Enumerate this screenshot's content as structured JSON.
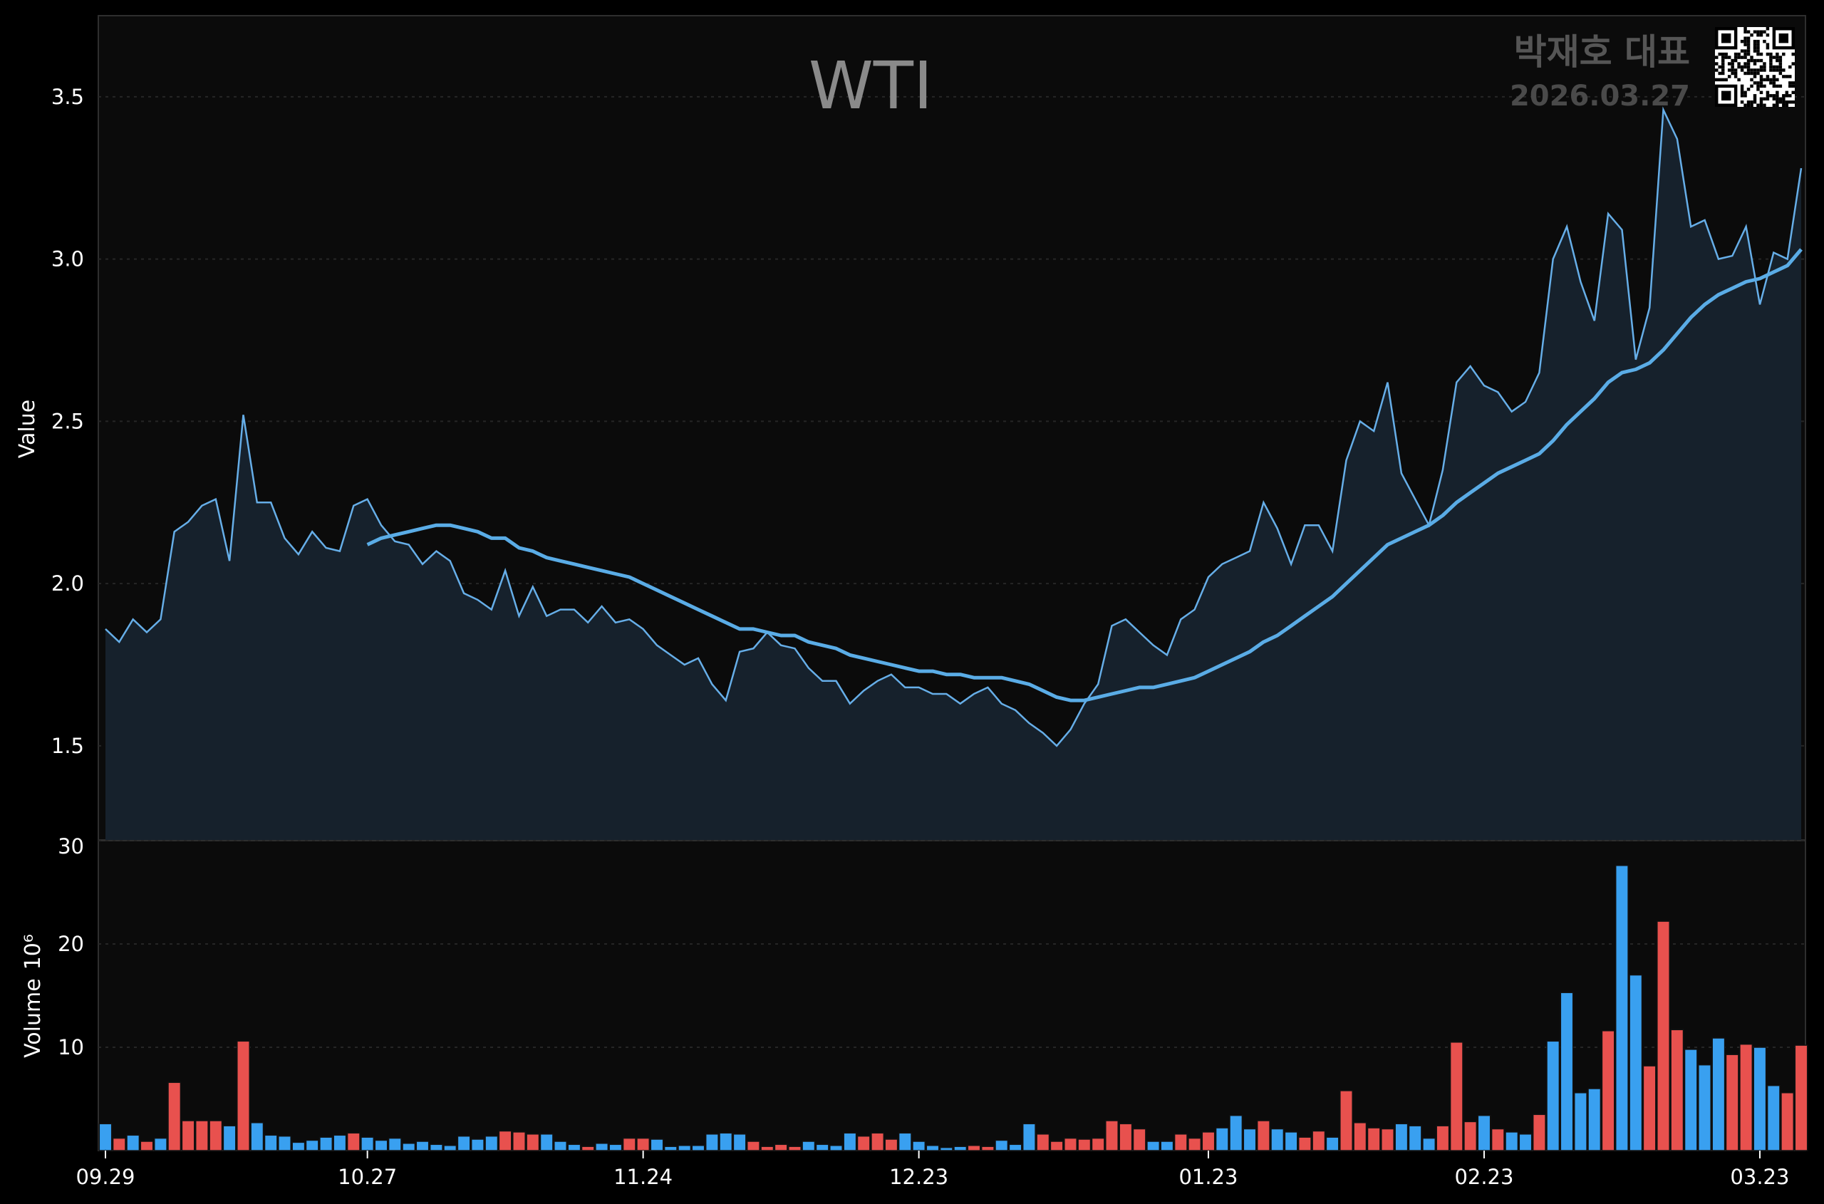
{
  "header": {
    "title": "WTI",
    "author": "박재호 대표",
    "date": "2026.03.27"
  },
  "colors": {
    "background": "#0b0b0b",
    "price_line": "#66aee8",
    "moving_average": "#5aace6",
    "area_fill": "#16212c",
    "volume_up": "#e8514e",
    "volume_down": "#39a0f0",
    "grid": "#2a2a2a"
  },
  "chart_data": [
    {
      "type": "line",
      "panel": "price",
      "title": "WTI",
      "ylabel": "Value",
      "ylim": [
        1.21,
        3.75
      ],
      "yticks": [
        "1.5",
        "2.0",
        "2.5",
        "3.0",
        "3.5"
      ],
      "grid": true,
      "series": [
        {
          "values": [
            1.86,
            1.82,
            1.89,
            1.85,
            1.89,
            2.16,
            2.19,
            2.24,
            2.26,
            2.07,
            2.52,
            2.25,
            2.25,
            2.14,
            2.09,
            2.16,
            2.11,
            2.1,
            2.24,
            2.26,
            2.18,
            2.13,
            2.12,
            2.06,
            2.1,
            2.07,
            1.97,
            1.95,
            1.92,
            2.04,
            1.9,
            1.99,
            1.9,
            1.92,
            1.92,
            1.88,
            1.93,
            1.88,
            1.89,
            1.86,
            1.81,
            1.78,
            1.75,
            1.77,
            1.69,
            1.64,
            1.79,
            1.8,
            1.85,
            1.81,
            1.8,
            1.74,
            1.7,
            1.7,
            1.63,
            1.67,
            1.7,
            1.72,
            1.68,
            1.68,
            1.66,
            1.66,
            1.63,
            1.66,
            1.68,
            1.63,
            1.61,
            1.57,
            1.54,
            1.5,
            1.55,
            1.63,
            1.69,
            1.87,
            1.89,
            1.85,
            1.81,
            1.78,
            1.89,
            1.92,
            2.02,
            2.06,
            2.08,
            2.1,
            2.25,
            2.17,
            2.06,
            2.18,
            2.18,
            2.1,
            2.38,
            2.5,
            2.47,
            2.62,
            2.34,
            2.26,
            2.18,
            2.35,
            2.62,
            2.67,
            2.61,
            2.59,
            2.53,
            2.56,
            2.65,
            3.0,
            3.1,
            2.93,
            2.81,
            3.14,
            3.09,
            2.69,
            2.85,
            3.46,
            3.37,
            3.1,
            3.12,
            3.0,
            3.01,
            3.1,
            2.86,
            3.02,
            3.0,
            3.28
          ]
        },
        {
          "values": [
            null,
            null,
            null,
            null,
            null,
            null,
            null,
            null,
            null,
            null,
            null,
            null,
            null,
            null,
            null,
            null,
            null,
            null,
            null,
            2.12,
            2.14,
            2.15,
            2.16,
            2.17,
            2.18,
            2.18,
            2.17,
            2.16,
            2.14,
            2.14,
            2.11,
            2.1,
            2.08,
            2.07,
            2.06,
            2.05,
            2.04,
            2.03,
            2.02,
            2.0,
            1.98,
            1.96,
            1.94,
            1.92,
            1.9,
            1.88,
            1.86,
            1.86,
            1.85,
            1.84,
            1.84,
            1.82,
            1.81,
            1.8,
            1.78,
            1.77,
            1.76,
            1.75,
            1.74,
            1.73,
            1.73,
            1.72,
            1.72,
            1.71,
            1.71,
            1.71,
            1.7,
            1.69,
            1.67,
            1.65,
            1.64,
            1.64,
            1.65,
            1.66,
            1.67,
            1.68,
            1.68,
            1.69,
            1.7,
            1.71,
            1.73,
            1.75,
            1.77,
            1.79,
            1.82,
            1.84,
            1.87,
            1.9,
            1.93,
            1.96,
            2.0,
            2.04,
            2.08,
            2.12,
            2.14,
            2.16,
            2.18,
            2.21,
            2.25,
            2.28,
            2.31,
            2.34,
            2.36,
            2.38,
            2.4,
            2.44,
            2.49,
            2.53,
            2.57,
            2.62,
            2.65,
            2.66,
            2.68,
            2.72,
            2.77,
            2.82,
            2.86,
            2.89,
            2.91,
            2.93,
            2.94,
            2.96,
            2.98,
            3.03
          ]
        }
      ]
    },
    {
      "type": "bar",
      "panel": "volume",
      "ylabel": "Volume",
      "ylabel_exponent": "10⁶",
      "ylim": [
        0,
        30
      ],
      "yticks": [
        "10",
        "20",
        "30"
      ],
      "grid": true,
      "values": [
        2.6,
        1.2,
        1.5,
        0.9,
        1.2,
        6.6,
        2.9,
        2.9,
        2.9,
        2.4,
        10.6,
        2.7,
        1.5,
        1.4,
        0.8,
        1.0,
        1.3,
        1.5,
        1.7,
        1.3,
        1.0,
        1.2,
        0.7,
        0.9,
        0.6,
        0.5,
        1.4,
        1.1,
        1.4,
        1.9,
        1.8,
        1.6,
        1.6,
        0.9,
        0.6,
        0.4,
        0.7,
        0.6,
        1.2,
        1.2,
        1.1,
        0.4,
        0.5,
        0.5,
        1.6,
        1.7,
        1.6,
        0.9,
        0.4,
        0.6,
        0.4,
        0.9,
        0.6,
        0.5,
        1.7,
        1.4,
        1.7,
        1.1,
        1.7,
        0.9,
        0.5,
        0.3,
        0.4,
        0.5,
        0.4,
        1.0,
        0.6,
        2.6,
        1.6,
        0.9,
        1.2,
        1.1,
        1.2,
        2.9,
        2.6,
        2.1,
        0.9,
        0.9,
        1.6,
        1.2,
        1.8,
        2.2,
        3.4,
        2.1,
        2.9,
        2.1,
        1.8,
        1.3,
        1.9,
        1.3,
        5.8,
        2.7,
        2.2,
        2.1,
        2.6,
        2.4,
        1.2,
        2.4,
        10.5,
        2.8,
        3.4,
        2.1,
        1.8,
        1.6,
        3.5,
        10.6,
        15.3,
        5.6,
        6.0,
        11.6,
        27.6,
        17.0,
        8.2,
        22.2,
        11.7,
        9.8,
        8.3,
        10.9,
        9.3,
        10.3,
        10.0,
        6.3,
        5.6,
        10.2
      ],
      "up": [
        0,
        1,
        0,
        1,
        0,
        1,
        1,
        1,
        1,
        0,
        1,
        0,
        0,
        0,
        0,
        0,
        0,
        0,
        1,
        0,
        0,
        0,
        0,
        0,
        0,
        0,
        0,
        0,
        0,
        1,
        1,
        1,
        0,
        0,
        0,
        1,
        0,
        0,
        1,
        1,
        0,
        0,
        0,
        0,
        0,
        0,
        0,
        1,
        1,
        1,
        1,
        0,
        0,
        0,
        0,
        1,
        1,
        1,
        0,
        0,
        0,
        0,
        0,
        1,
        1,
        0,
        0,
        0,
        1,
        1,
        1,
        1,
        1,
        1,
        1,
        1,
        0,
        0,
        1,
        1,
        1,
        0,
        0,
        0,
        1,
        0,
        0,
        1,
        1,
        0,
        1,
        1,
        1,
        1,
        0,
        0,
        0,
        1,
        1,
        1,
        0,
        1,
        0,
        0,
        1,
        0,
        0,
        0,
        0,
        1,
        0,
        0,
        1,
        1,
        1,
        0,
        0,
        0,
        1,
        1,
        0,
        0,
        1,
        1
      ]
    }
  ],
  "x_axis": {
    "tick_labels": [
      "09.29",
      "10.27",
      "11.24",
      "12.23",
      "01.23",
      "02.23",
      "03.23"
    ]
  }
}
